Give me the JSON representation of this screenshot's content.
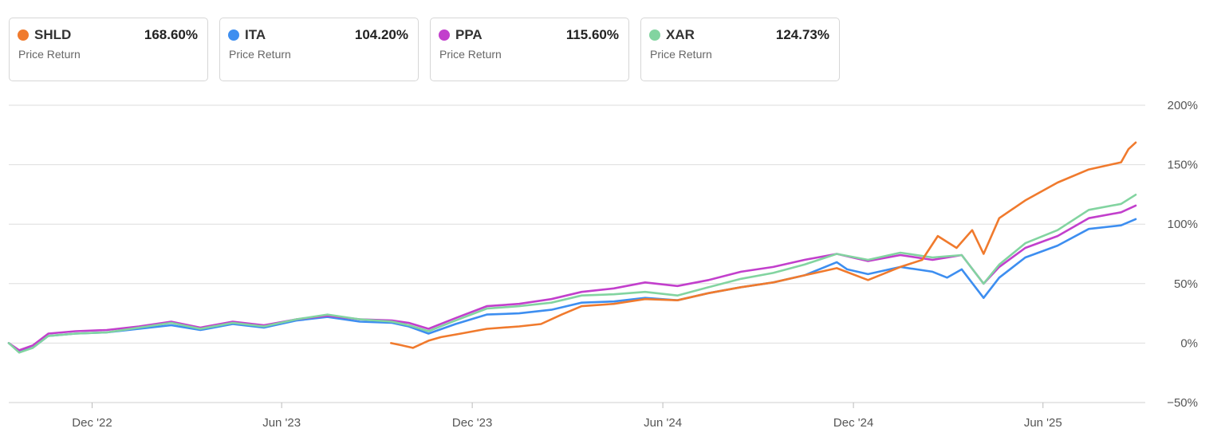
{
  "legend": [
    {
      "ticker": "SHLD",
      "value": "168.60%",
      "sub": "Price Return",
      "color": "#f07a2d"
    },
    {
      "ticker": "ITA",
      "value": "104.20%",
      "sub": "Price Return",
      "color": "#3d8ef0"
    },
    {
      "ticker": "PPA",
      "value": "115.60%",
      "sub": "Price Return",
      "color": "#c23fcc"
    },
    {
      "ticker": "XAR",
      "value": "124.73%",
      "sub": "Price Return",
      "color": "#82d4a0"
    }
  ],
  "chart_data": {
    "type": "line",
    "title": "",
    "xlabel": "",
    "ylabel": "",
    "ylim": [
      -50,
      200
    ],
    "y_ticks": [
      200,
      150,
      100,
      50,
      0,
      -50
    ],
    "y_tick_labels": [
      "200%",
      "150%",
      "100%",
      "50%",
      "0%",
      "−50%"
    ],
    "x_ticks": [
      "2022-12-01",
      "2023-06-01",
      "2023-12-01",
      "2024-06-01",
      "2024-12-01",
      "2025-06-01"
    ],
    "x_tick_labels": [
      "Dec '22",
      "Jun '23",
      "Dec '23",
      "Jun '24",
      "Dec '24",
      "Jun '25"
    ],
    "x_range": [
      "2022-09-12",
      "2025-08-29"
    ],
    "grid": "horizontal",
    "legend_position": "top",
    "series": [
      {
        "name": "ITA",
        "color": "#3d8ef0",
        "points": [
          [
            "2022-09-12",
            0
          ],
          [
            "2022-09-22",
            -7
          ],
          [
            "2022-10-05",
            -4
          ],
          [
            "2022-10-20",
            6
          ],
          [
            "2022-11-15",
            8
          ],
          [
            "2022-12-15",
            9
          ],
          [
            "2023-01-15",
            12
          ],
          [
            "2023-02-15",
            15
          ],
          [
            "2023-03-15",
            11
          ],
          [
            "2023-04-15",
            16
          ],
          [
            "2023-05-15",
            13
          ],
          [
            "2023-06-15",
            19
          ],
          [
            "2023-07-15",
            22
          ],
          [
            "2023-08-15",
            18
          ],
          [
            "2023-09-15",
            17
          ],
          [
            "2023-10-01",
            14
          ],
          [
            "2023-10-20",
            8
          ],
          [
            "2023-11-15",
            16
          ],
          [
            "2023-12-15",
            24
          ],
          [
            "2024-01-15",
            25
          ],
          [
            "2024-02-15",
            28
          ],
          [
            "2024-03-15",
            34
          ],
          [
            "2024-04-15",
            35
          ],
          [
            "2024-05-15",
            38
          ],
          [
            "2024-06-15",
            36
          ],
          [
            "2024-07-15",
            42
          ],
          [
            "2024-08-15",
            47
          ],
          [
            "2024-09-15",
            51
          ],
          [
            "2024-10-15",
            57
          ],
          [
            "2024-11-15",
            68
          ],
          [
            "2024-11-25",
            62
          ],
          [
            "2024-12-15",
            58
          ],
          [
            "2025-01-15",
            64
          ],
          [
            "2025-02-15",
            60
          ],
          [
            "2025-03-01",
            55
          ],
          [
            "2025-03-15",
            62
          ],
          [
            "2025-04-05",
            38
          ],
          [
            "2025-04-20",
            55
          ],
          [
            "2025-05-15",
            72
          ],
          [
            "2025-06-15",
            82
          ],
          [
            "2025-07-15",
            96
          ],
          [
            "2025-08-15",
            99
          ],
          [
            "2025-08-29",
            104.2
          ]
        ]
      },
      {
        "name": "PPA",
        "color": "#c23fcc",
        "points": [
          [
            "2022-09-12",
            0
          ],
          [
            "2022-09-22",
            -6
          ],
          [
            "2022-10-05",
            -2
          ],
          [
            "2022-10-20",
            8
          ],
          [
            "2022-11-15",
            10
          ],
          [
            "2022-12-15",
            11
          ],
          [
            "2023-01-15",
            14
          ],
          [
            "2023-02-15",
            18
          ],
          [
            "2023-03-15",
            13
          ],
          [
            "2023-04-15",
            18
          ],
          [
            "2023-05-15",
            15
          ],
          [
            "2023-06-15",
            20
          ],
          [
            "2023-07-15",
            23
          ],
          [
            "2023-08-15",
            20
          ],
          [
            "2023-09-15",
            19
          ],
          [
            "2023-10-01",
            17
          ],
          [
            "2023-10-20",
            12
          ],
          [
            "2023-11-15",
            21
          ],
          [
            "2023-12-15",
            31
          ],
          [
            "2024-01-15",
            33
          ],
          [
            "2024-02-15",
            37
          ],
          [
            "2024-03-15",
            43
          ],
          [
            "2024-04-15",
            46
          ],
          [
            "2024-05-15",
            51
          ],
          [
            "2024-06-15",
            48
          ],
          [
            "2024-07-15",
            53
          ],
          [
            "2024-08-15",
            60
          ],
          [
            "2024-09-15",
            64
          ],
          [
            "2024-10-15",
            70
          ],
          [
            "2024-11-15",
            75
          ],
          [
            "2024-12-15",
            69
          ],
          [
            "2025-01-15",
            74
          ],
          [
            "2025-02-15",
            70
          ],
          [
            "2025-03-15",
            74
          ],
          [
            "2025-04-05",
            50
          ],
          [
            "2025-04-20",
            64
          ],
          [
            "2025-05-15",
            80
          ],
          [
            "2025-06-15",
            90
          ],
          [
            "2025-07-15",
            105
          ],
          [
            "2025-08-15",
            110
          ],
          [
            "2025-08-29",
            115.6
          ]
        ]
      },
      {
        "name": "XAR",
        "color": "#82d4a0",
        "points": [
          [
            "2022-09-12",
            0
          ],
          [
            "2022-09-22",
            -8
          ],
          [
            "2022-10-05",
            -4
          ],
          [
            "2022-10-20",
            6
          ],
          [
            "2022-11-15",
            8
          ],
          [
            "2022-12-15",
            9
          ],
          [
            "2023-01-15",
            13
          ],
          [
            "2023-02-15",
            17
          ],
          [
            "2023-03-15",
            12
          ],
          [
            "2023-04-15",
            17
          ],
          [
            "2023-05-15",
            14
          ],
          [
            "2023-06-15",
            20
          ],
          [
            "2023-07-15",
            24
          ],
          [
            "2023-08-15",
            20
          ],
          [
            "2023-09-15",
            18
          ],
          [
            "2023-10-01",
            15
          ],
          [
            "2023-10-20",
            10
          ],
          [
            "2023-11-15",
            19
          ],
          [
            "2023-12-15",
            29
          ],
          [
            "2024-01-15",
            31
          ],
          [
            "2024-02-15",
            34
          ],
          [
            "2024-03-15",
            40
          ],
          [
            "2024-04-15",
            41
          ],
          [
            "2024-05-15",
            43
          ],
          [
            "2024-06-15",
            40
          ],
          [
            "2024-07-15",
            47
          ],
          [
            "2024-08-15",
            54
          ],
          [
            "2024-09-15",
            59
          ],
          [
            "2024-10-15",
            66
          ],
          [
            "2024-11-15",
            75
          ],
          [
            "2024-12-15",
            70
          ],
          [
            "2025-01-15",
            76
          ],
          [
            "2025-02-15",
            72
          ],
          [
            "2025-03-15",
            74
          ],
          [
            "2025-04-05",
            50
          ],
          [
            "2025-04-20",
            66
          ],
          [
            "2025-05-15",
            84
          ],
          [
            "2025-06-15",
            95
          ],
          [
            "2025-07-15",
            112
          ],
          [
            "2025-08-15",
            117
          ],
          [
            "2025-08-29",
            124.7
          ]
        ]
      },
      {
        "name": "SHLD",
        "color": "#f07a2d",
        "points": [
          [
            "2023-09-14",
            0
          ],
          [
            "2023-09-25",
            -2
          ],
          [
            "2023-10-05",
            -4
          ],
          [
            "2023-10-20",
            2
          ],
          [
            "2023-11-01",
            5
          ],
          [
            "2023-11-20",
            8
          ],
          [
            "2023-12-15",
            12
          ],
          [
            "2024-01-15",
            14
          ],
          [
            "2024-02-05",
            16
          ],
          [
            "2024-02-25",
            24
          ],
          [
            "2024-03-15",
            31
          ],
          [
            "2024-04-15",
            33
          ],
          [
            "2024-05-15",
            37
          ],
          [
            "2024-06-15",
            36
          ],
          [
            "2024-07-15",
            42
          ],
          [
            "2024-08-15",
            47
          ],
          [
            "2024-09-15",
            51
          ],
          [
            "2024-10-15",
            57
          ],
          [
            "2024-11-15",
            63
          ],
          [
            "2024-12-15",
            53
          ],
          [
            "2025-01-15",
            64
          ],
          [
            "2025-02-05",
            70
          ],
          [
            "2025-02-20",
            90
          ],
          [
            "2025-03-10",
            80
          ],
          [
            "2025-03-25",
            95
          ],
          [
            "2025-04-05",
            75
          ],
          [
            "2025-04-20",
            105
          ],
          [
            "2025-05-15",
            120
          ],
          [
            "2025-06-15",
            135
          ],
          [
            "2025-07-15",
            146
          ],
          [
            "2025-08-15",
            152
          ],
          [
            "2025-08-22",
            163
          ],
          [
            "2025-08-29",
            168.6
          ]
        ]
      }
    ]
  }
}
